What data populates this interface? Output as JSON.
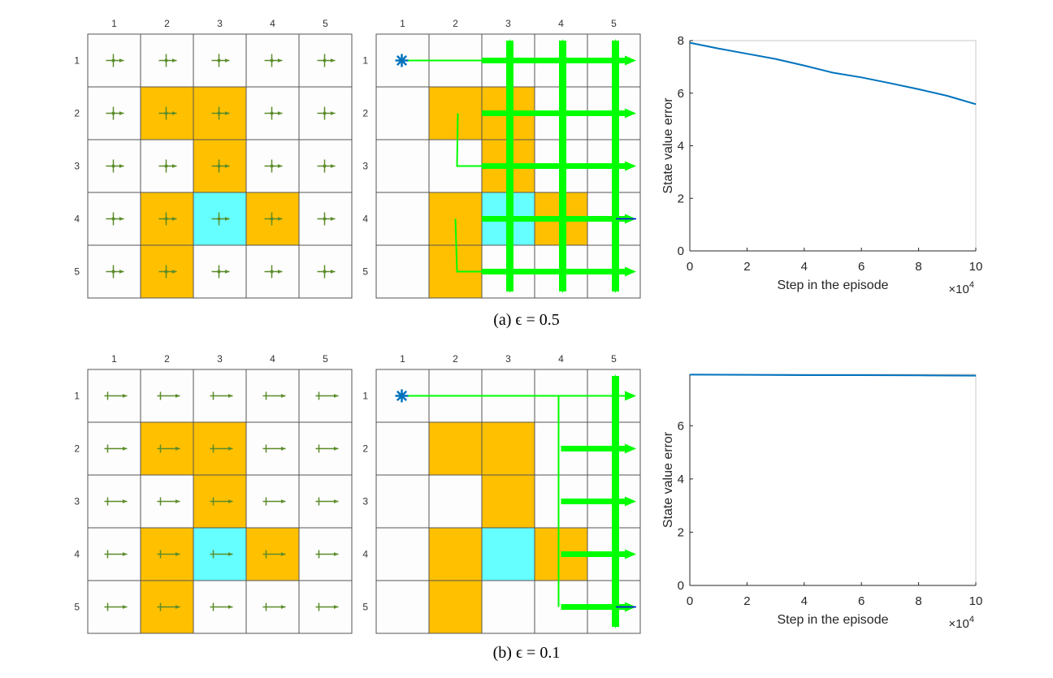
{
  "grid": {
    "col_labels": [
      "1",
      "2",
      "3",
      "4",
      "5"
    ],
    "row_labels": [
      "1",
      "2",
      "3",
      "4",
      "5"
    ],
    "forbidden_cells": [
      [
        2,
        2
      ],
      [
        2,
        3
      ],
      [
        3,
        3
      ],
      [
        4,
        2
      ],
      [
        4,
        4
      ],
      [
        5,
        2
      ]
    ],
    "target_cell": [
      4,
      3
    ],
    "start_cell": [
      1,
      1
    ],
    "colors": {
      "forbidden": "#ffc000",
      "target": "#66ffff",
      "arrow": "#5b8c2a",
      "trajectory": "#00ff00",
      "start": "#0072bd",
      "line": "#0072bd"
    }
  },
  "panels": [
    {
      "caption": "(a) ϵ = 0.5",
      "policy": "uniform-cross",
      "trajectory_cols": [
        3,
        4,
        5
      ],
      "trajectory_start_col": 2.5
    },
    {
      "caption": "(b) ϵ = 0.1",
      "policy": "right-dominant",
      "trajectory_cols": [
        5
      ],
      "trajectory_start_col": 4
    }
  ],
  "chart_data": [
    {
      "type": "line",
      "title": "",
      "xlabel": "Step in the episode",
      "ylabel": "State value error",
      "x_multiplier": "×10^4",
      "xlim": [
        0,
        10
      ],
      "ylim": [
        0,
        8
      ],
      "xticks": [
        "0",
        "2",
        "4",
        "6",
        "8",
        "10"
      ],
      "yticks": [
        "0",
        "2",
        "4",
        "6",
        "8"
      ],
      "x": [
        0,
        1,
        2,
        3,
        4,
        5,
        6,
        7,
        8,
        9,
        10
      ],
      "y": [
        7.92,
        7.7,
        7.5,
        7.3,
        7.05,
        6.78,
        6.6,
        6.38,
        6.15,
        5.9,
        5.58
      ]
    },
    {
      "type": "line",
      "title": "",
      "xlabel": "Step in the episode",
      "ylabel": "State value error",
      "x_multiplier": "×10^4",
      "xlim": [
        0,
        10
      ],
      "ylim": [
        0,
        7.93
      ],
      "xticks": [
        "0",
        "2",
        "4",
        "6",
        "8",
        "10"
      ],
      "yticks": [
        "0",
        "2",
        "4",
        "6"
      ],
      "x": [
        0,
        2,
        4,
        6,
        8,
        10
      ],
      "y": [
        7.92,
        7.91,
        7.9,
        7.9,
        7.89,
        7.88
      ]
    }
  ]
}
